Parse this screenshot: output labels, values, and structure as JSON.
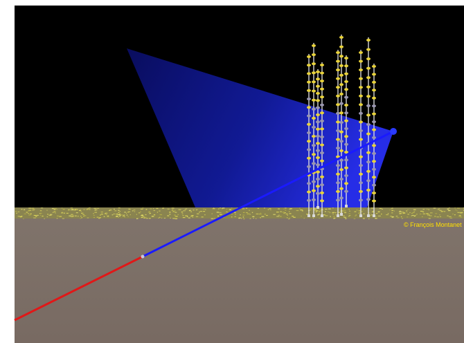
{
  "scene": {
    "credit": "© François Montanet",
    "colors": {
      "sky": "#000000",
      "seabed": "#7d7068",
      "seabed_surface": "#c8c25a",
      "cone": "#1a23ff",
      "track_blue": "#1a1aff",
      "track_red": "#e01818",
      "string_line": "#e6e6e6",
      "storey_yellow": "#e8d23a",
      "storey_grey": "#9a96b0",
      "credit_text": "#ffe000"
    },
    "detector_lines": 10
  }
}
